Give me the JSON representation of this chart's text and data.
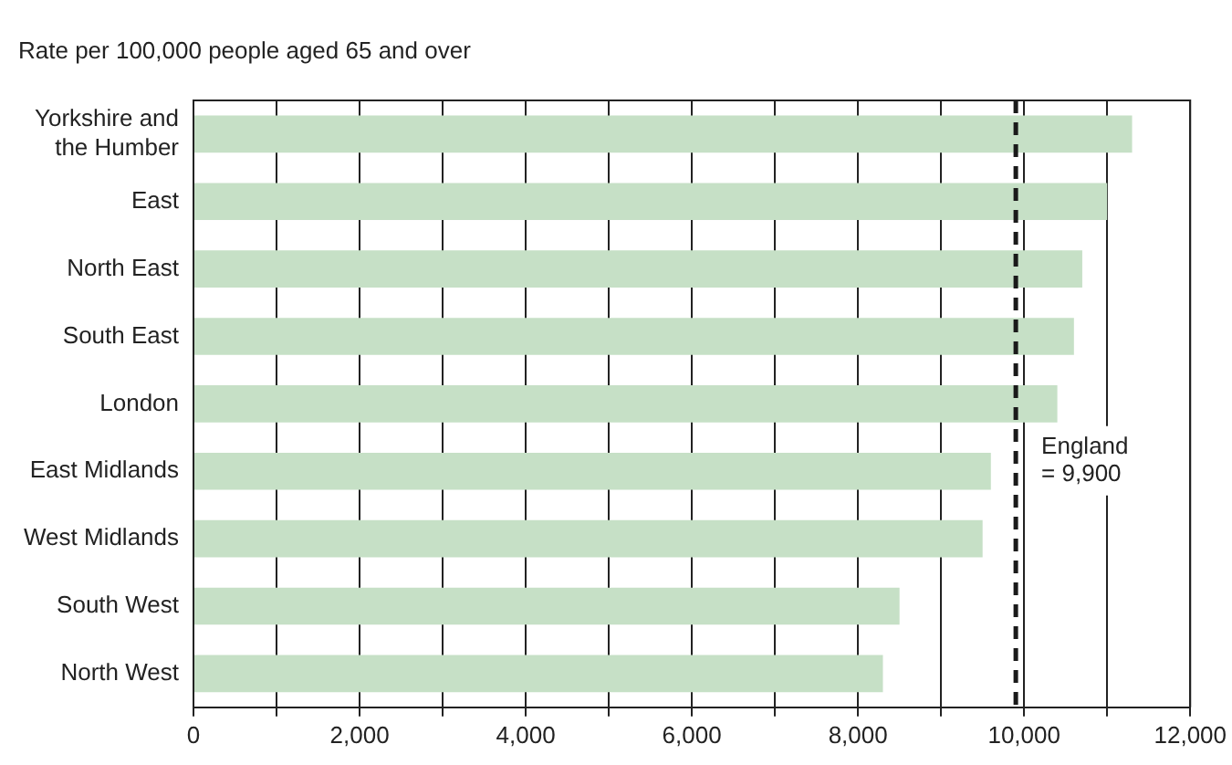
{
  "chart_data": {
    "type": "bar",
    "orientation": "horizontal",
    "title": "Rate per 100,000 people aged 65 and over",
    "categories": [
      "Yorkshire and the Humber",
      "East",
      "North East",
      "South East",
      "London",
      "East Midlands",
      "West Midlands",
      "South West",
      "North West"
    ],
    "values": [
      11300,
      11000,
      10700,
      10600,
      10400,
      9600,
      9500,
      8500,
      8300
    ],
    "color": "#c6e0c6",
    "xlim": [
      0,
      12000
    ],
    "xticks": [
      0,
      {
        "value": 1000,
        "label": null
      },
      {
        "value": 2000,
        "label": "2,000"
      },
      {
        "value": 3000,
        "label": null
      },
      {
        "value": 4000,
        "label": "4,000"
      },
      {
        "value": 5000,
        "label": null
      },
      {
        "value": 6000,
        "label": "6,000"
      },
      {
        "value": 7000,
        "label": null
      },
      {
        "value": 8000,
        "label": "8,000"
      },
      {
        "value": 9000,
        "label": null
      },
      {
        "value": 10000,
        "label": "10,000"
      },
      {
        "value": 11000,
        "label": null
      },
      {
        "value": 12000,
        "label": "12,000"
      }
    ],
    "grid": "x",
    "ref_lines": [
      {
        "axis": "x",
        "value": 9900,
        "label": "England = 9,900",
        "color": "#1a1a1a",
        "line_style": "dashed"
      }
    ]
  }
}
